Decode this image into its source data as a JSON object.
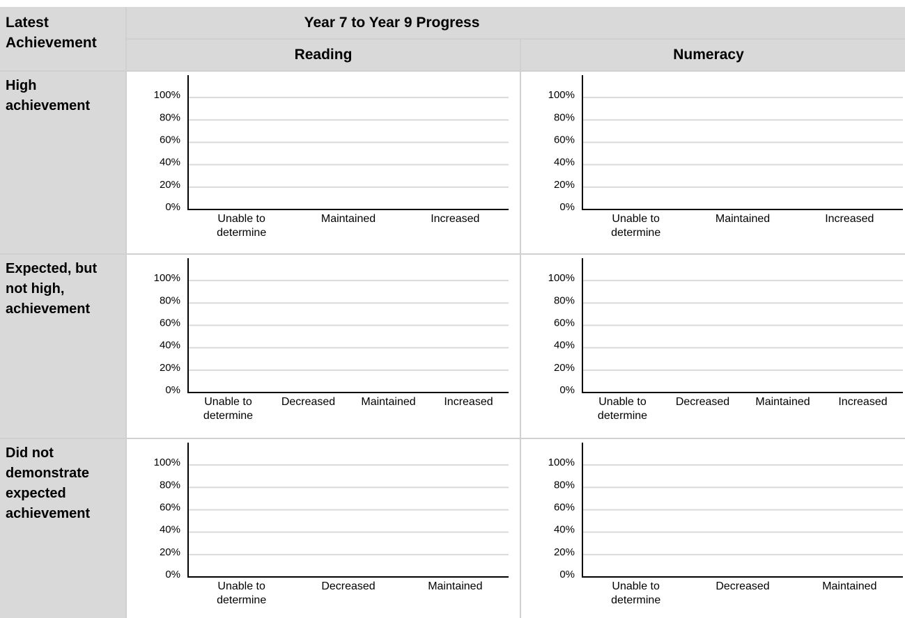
{
  "table": {
    "header": {
      "corner": "Latest Achievement",
      "title": "Year 7 to Year 9 Progress",
      "columns": [
        "Reading",
        "Numeracy"
      ]
    },
    "rows": [
      {
        "label": "High achievement",
        "charts": [
          {
            "type": "bar",
            "categories": [
              "Unable to determine",
              "Maintained",
              "Increased"
            ],
            "ylim": [
              0,
              120
            ],
            "yticks": [
              {
                "value": 0,
                "label": "0%"
              },
              {
                "value": 20,
                "label": "20%"
              },
              {
                "value": 40,
                "label": "40%"
              },
              {
                "value": 60,
                "label": "60%"
              },
              {
                "value": 80,
                "label": "80%"
              },
              {
                "value": 100,
                "label": "100%"
              }
            ],
            "grid": true
          },
          {
            "type": "bar",
            "categories": [
              "Unable to determine",
              "Maintained",
              "Increased"
            ],
            "ylim": [
              0,
              120
            ],
            "yticks": [
              {
                "value": 0,
                "label": "0%"
              },
              {
                "value": 20,
                "label": "20%"
              },
              {
                "value": 40,
                "label": "40%"
              },
              {
                "value": 60,
                "label": "60%"
              },
              {
                "value": 80,
                "label": "80%"
              },
              {
                "value": 100,
                "label": "100%"
              }
            ],
            "grid": true
          }
        ]
      },
      {
        "label": "Expected, but not high, achievement",
        "charts": [
          {
            "type": "bar",
            "categories": [
              "Unable to determine",
              "Decreased",
              "Maintained",
              "Increased"
            ],
            "ylim": [
              0,
              120
            ],
            "yticks": [
              {
                "value": 0,
                "label": "0%"
              },
              {
                "value": 20,
                "label": "20%"
              },
              {
                "value": 40,
                "label": "40%"
              },
              {
                "value": 60,
                "label": "60%"
              },
              {
                "value": 80,
                "label": "80%"
              },
              {
                "value": 100,
                "label": "100%"
              }
            ],
            "grid": true
          },
          {
            "type": "bar",
            "categories": [
              "Unable to determine",
              "Decreased",
              "Maintained",
              "Increased"
            ],
            "ylim": [
              0,
              120
            ],
            "yticks": [
              {
                "value": 0,
                "label": "0%"
              },
              {
                "value": 20,
                "label": "20%"
              },
              {
                "value": 40,
                "label": "40%"
              },
              {
                "value": 60,
                "label": "60%"
              },
              {
                "value": 80,
                "label": "80%"
              },
              {
                "value": 100,
                "label": "100%"
              }
            ],
            "grid": true
          }
        ]
      },
      {
        "label": "Did not demonstrate expected achievement",
        "charts": [
          {
            "type": "bar",
            "categories": [
              "Unable to determine",
              "Decreased",
              "Maintained"
            ],
            "ylim": [
              0,
              120
            ],
            "yticks": [
              {
                "value": 0,
                "label": "0%"
              },
              {
                "value": 20,
                "label": "20%"
              },
              {
                "value": 40,
                "label": "40%"
              },
              {
                "value": 60,
                "label": "60%"
              },
              {
                "value": 80,
                "label": "80%"
              },
              {
                "value": 100,
                "label": "100%"
              }
            ],
            "grid": true
          },
          {
            "type": "bar",
            "categories": [
              "Unable to determine",
              "Decreased",
              "Maintained"
            ],
            "ylim": [
              0,
              120
            ],
            "yticks": [
              {
                "value": 0,
                "label": "0%"
              },
              {
                "value": 20,
                "label": "20%"
              },
              {
                "value": 40,
                "label": "40%"
              },
              {
                "value": 60,
                "label": "60%"
              },
              {
                "value": 80,
                "label": "80%"
              },
              {
                "value": 100,
                "label": "100%"
              }
            ],
            "grid": true
          }
        ]
      }
    ]
  }
}
